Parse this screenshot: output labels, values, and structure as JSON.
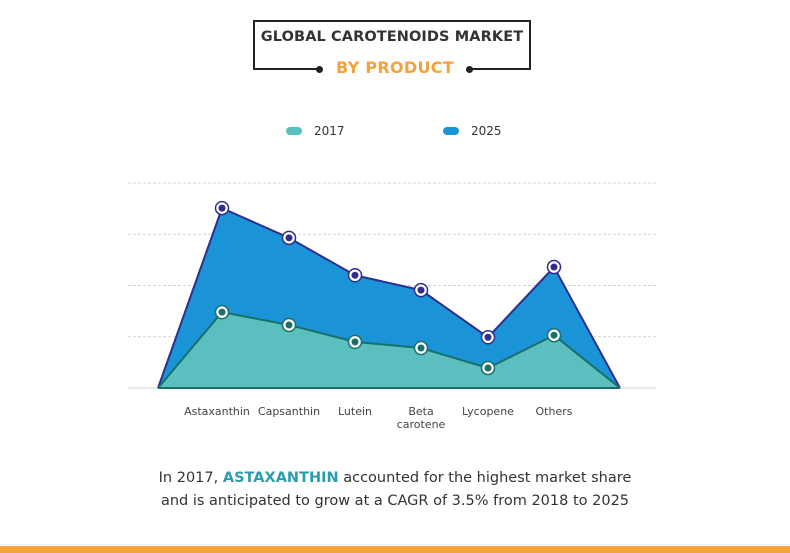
{
  "header": {
    "title": "GLOBAL CAROTENOIDS MARKET",
    "subtitle": "BY PRODUCT"
  },
  "colors": {
    "series_2017_fill": "#5bbfbf",
    "series_2017_line": "#17706a",
    "series_2025_fill": "#1a94d6",
    "series_2025_line": "#2e2e8f",
    "accent_orange": "#f5a23a",
    "highlight_teal": "#2b9bb0"
  },
  "chart_data": {
    "type": "area",
    "title": "Global Carotenoids Market by Product",
    "xlabel": "",
    "ylabel": "",
    "categories": [
      "Astaxanthin",
      "Capsanthin",
      "Lutein",
      "Beta carotene",
      "Lycopene",
      "Others"
    ],
    "category_labels": [
      [
        "Astaxanthin"
      ],
      [
        "Capsanthin"
      ],
      [
        "Lutein"
      ],
      [
        "Beta",
        "carotene"
      ],
      [
        "Lycopene"
      ],
      [
        "Others"
      ]
    ],
    "series": [
      {
        "name": "2025",
        "values": [
          3.51,
          2.93,
          2.2,
          1.91,
          0.99,
          2.36
        ]
      },
      {
        "name": "2017",
        "values": [
          1.48,
          1.23,
          0.9,
          0.78,
          0.39,
          1.03
        ]
      }
    ],
    "ylim": [
      0,
      4
    ],
    "yticks": [
      0,
      1,
      2,
      3,
      4
    ],
    "ytick_labels_shown": false,
    "grid": true,
    "legend": "top-center",
    "note": "Area series start and end at zero on either side of the categories; y-axis has no labels"
  },
  "legend": [
    {
      "label": "2017"
    },
    {
      "label": "2025"
    }
  ],
  "footer": {
    "prefix": "In 2017,",
    "highlight": "ASTAXANTHIN",
    "suffix": "accounted for the highest market share",
    "line2": "and is anticipated to grow at a CAGR of 3.5% from 2018 to 2025"
  }
}
